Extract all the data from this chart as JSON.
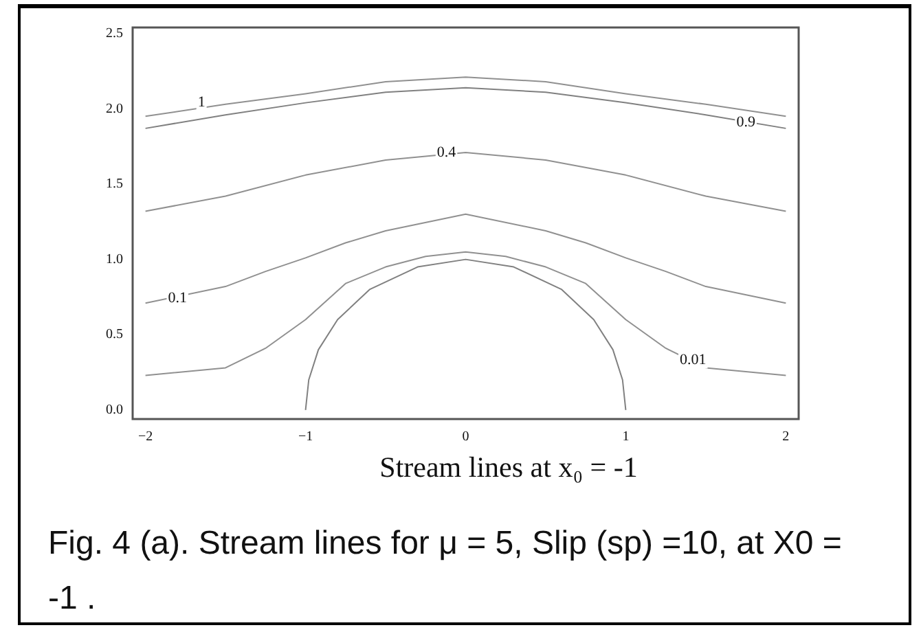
{
  "chart_data": {
    "type": "line",
    "xlabel": "Stream lines at x₀ = -1",
    "xlim": [
      -2.08,
      2.08
    ],
    "ylim": [
      -0.06,
      2.54
    ],
    "xticks": [
      {
        "value": -2,
        "label": "−2"
      },
      {
        "value": -1,
        "label": "−1"
      },
      0,
      1,
      2
    ],
    "yticks": [
      {
        "value": 0,
        "label": "0.0"
      },
      0.5,
      {
        "value": 1,
        "label": "1.0"
      },
      1.5,
      {
        "value": 2,
        "label": "2.0"
      },
      2.5
    ],
    "grid": false,
    "legend": false,
    "marker": "none",
    "line_style": "solid",
    "series": [
      {
        "color": "#909090",
        "x": [
          -2,
          -1.5,
          -1,
          -0.5,
          0,
          0.5,
          1,
          1.5,
          2
        ],
        "values": [
          1.95,
          2.03,
          2.1,
          2.18,
          2.21,
          2.18,
          2.1,
          2.03,
          1.95
        ]
      },
      {
        "color": "#808080",
        "x": [
          -2,
          -1.5,
          -1,
          -0.5,
          0,
          0.5,
          1,
          1.5,
          2
        ],
        "values": [
          1.87,
          1.96,
          2.04,
          2.11,
          2.14,
          2.11,
          2.04,
          1.96,
          1.87
        ]
      },
      {
        "color": "#909090",
        "x": [
          -2,
          -1.5,
          -1,
          -0.5,
          0,
          0.5,
          1,
          1.5,
          2
        ],
        "values": [
          1.32,
          1.42,
          1.56,
          1.66,
          1.71,
          1.66,
          1.56,
          1.42,
          1.32
        ]
      },
      {
        "color": "#909090",
        "x": [
          -2,
          -1.5,
          -1.25,
          -1,
          -0.75,
          -0.5,
          0,
          0.5,
          0.75,
          1,
          1.25,
          1.5,
          2
        ],
        "values": [
          0.71,
          0.82,
          0.92,
          1.01,
          1.11,
          1.19,
          1.3,
          1.19,
          1.11,
          1.01,
          0.92,
          0.82,
          0.71
        ]
      },
      {
        "color": "#909090",
        "x": [
          -2,
          -1.5,
          -1.25,
          -1,
          -0.75,
          -0.5,
          -0.25,
          0,
          0.25,
          0.5,
          0.75,
          1,
          1.25,
          1.5,
          2
        ],
        "values": [
          0.23,
          0.28,
          0.41,
          0.6,
          0.84,
          0.95,
          1.02,
          1.05,
          1.02,
          0.95,
          0.84,
          0.6,
          0.41,
          0.28,
          0.23
        ]
      },
      {
        "color": "#808080",
        "x": [
          -1,
          -0.98,
          -0.92,
          -0.8,
          -0.6,
          -0.3,
          0,
          0.3,
          0.6,
          0.8,
          0.92,
          0.98,
          1
        ],
        "values": [
          0,
          0.2,
          0.4,
          0.6,
          0.8,
          0.95,
          1,
          0.95,
          0.8,
          0.6,
          0.4,
          0.2,
          0
        ]
      }
    ],
    "annotations": [
      {
        "text": "1",
        "x": -1.65,
        "y": 2.04
      },
      {
        "text": "0.9",
        "x": 1.75,
        "y": 1.91
      },
      {
        "text": "0.4",
        "x": -0.12,
        "y": 1.71
      },
      {
        "text": "0.1",
        "x": -1.8,
        "y": 0.74
      },
      {
        "text": "0.01",
        "x": 1.42,
        "y": 0.33
      },
      "Fig. 4 (a). Stream lines for μ = 5, Slip (sp) =10, at X0 = -1 ."
    ]
  }
}
